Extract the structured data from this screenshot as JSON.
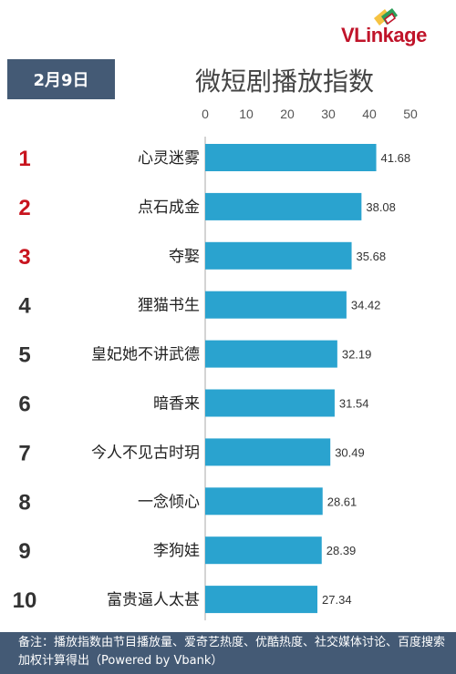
{
  "brand": {
    "name": "VLinkage",
    "logo_colors": [
      "#f6c342",
      "#2f9e5a",
      "#c0142a"
    ]
  },
  "header": {
    "date_label": "2月9日",
    "title": "微短剧播放指数"
  },
  "chart_data": {
    "type": "bar",
    "orientation": "horizontal",
    "title": "微短剧播放指数",
    "xlim": [
      0,
      50
    ],
    "xticks": [
      0,
      10,
      20,
      30,
      40,
      50
    ],
    "grid": false,
    "legend": "none",
    "bar_color": "#2aa3cf",
    "rank_colors": {
      "top3": "#c8141e",
      "rest": "#333333"
    },
    "ranks": [
      "1",
      "2",
      "3",
      "4",
      "5",
      "6",
      "7",
      "8",
      "9",
      "10"
    ],
    "categories": [
      "心灵迷雾",
      "点石成金",
      "夺娶",
      "狸猫书生",
      "皇妃她不讲武德",
      "暗香来",
      "今人不见古时玥",
      "一念倾心",
      "李狗娃",
      "富贵逼人太甚"
    ],
    "values": [
      41.68,
      38.08,
      35.68,
      34.42,
      32.19,
      31.54,
      30.49,
      28.61,
      28.39,
      27.34
    ],
    "value_labels": [
      "41.68",
      "38.08",
      "35.68",
      "34.42",
      "32.19",
      "31.54",
      "30.49",
      "28.61",
      "28.39",
      "27.34"
    ]
  },
  "footer": {
    "note": "备注：播放指数由节目播放量、爱奇艺热度、优酷热度、社交媒体讨论、百度搜索加权计算得出（Powered by Vbank）"
  }
}
